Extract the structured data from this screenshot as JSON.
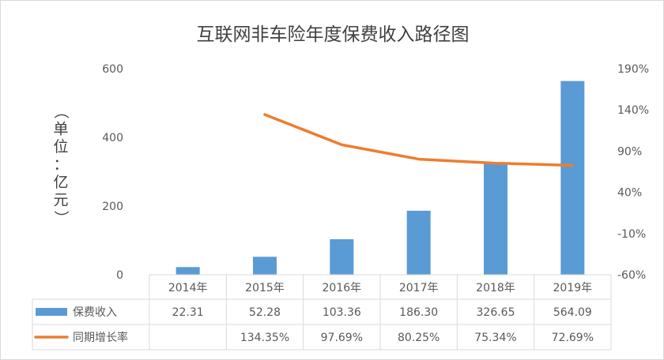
{
  "chart_data": {
    "type": "bar",
    "title": "互联网非车险年度保费收入路径图",
    "ylabel_chars": [
      "（",
      "单",
      "位",
      "：",
      "亿",
      "元",
      "）"
    ],
    "categories": [
      "2014年",
      "2015年",
      "2016年",
      "2017年",
      "2018年",
      "2019年"
    ],
    "series": [
      {
        "name": "保费收入",
        "type": "bar",
        "axis": "left",
        "color": "#5b9bd5",
        "values": [
          22.31,
          52.28,
          103.36,
          186.3,
          326.65,
          564.09
        ],
        "labels": [
          "22.31",
          "52.28",
          "103.36",
          "186.30",
          "326.65",
          "564.09"
        ]
      },
      {
        "name": "同期增长率",
        "type": "line",
        "axis": "right",
        "color": "#ed7d31",
        "values": [
          null,
          134.35,
          97.69,
          80.25,
          75.34,
          72.69
        ],
        "labels": [
          "",
          "134.35%",
          "97.69%",
          "80.25%",
          "75.34%",
          "72.69%"
        ]
      }
    ],
    "y_left": {
      "min": 0,
      "max": 600,
      "ticks": [
        "0",
        "200",
        "400",
        "600"
      ]
    },
    "y_right": {
      "min": -60,
      "max": 190,
      "ticks": [
        "-60%",
        "-10%",
        "40%",
        "90%",
        "140%",
        "190%"
      ]
    },
    "grid": false,
    "data_table": true
  }
}
